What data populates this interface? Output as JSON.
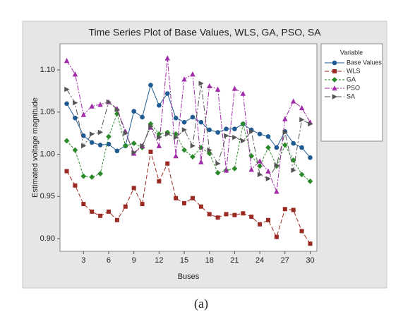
{
  "chart_data": {
    "type": "line",
    "title": "Time Series Plot of Base Values, WLS, GA, PSO, SA",
    "x_label": "Buses",
    "y_label": "Estimated voltage magnitude",
    "legend_title": "Variable",
    "legend": "right",
    "caption": "(a)",
    "x": [
      1,
      2,
      3,
      4,
      5,
      6,
      7,
      8,
      9,
      10,
      11,
      12,
      13,
      14,
      15,
      16,
      17,
      18,
      19,
      20,
      21,
      22,
      23,
      24,
      25,
      26,
      27,
      28,
      29,
      30
    ],
    "xlim": [
      0.2,
      30.8
    ],
    "xticks": [
      3,
      6,
      9,
      12,
      15,
      18,
      21,
      24,
      27,
      30
    ],
    "ylim": [
      0.885,
      1.131
    ],
    "yticks": [
      {
        "value": 0.9,
        "label": "0.90"
      },
      {
        "value": 0.95,
        "label": "0.95"
      },
      {
        "value": 1.0,
        "label": "1.00"
      },
      {
        "value": 1.05,
        "label": "1.05"
      },
      {
        "value": 1.1,
        "label": "1.10"
      }
    ],
    "series": [
      {
        "name": "Base Values",
        "color": "#1f5b92",
        "marker": "circle",
        "dash": "solid",
        "values": [
          1.06,
          1.043,
          1.022,
          1.014,
          1.011,
          1.012,
          1.004,
          1.01,
          1.051,
          1.044,
          1.082,
          1.058,
          1.072,
          1.043,
          1.038,
          1.044,
          1.038,
          1.029,
          1.026,
          1.03,
          1.03,
          1.036,
          1.029,
          1.024,
          1.021,
          1.008,
          1.027,
          1.013,
          1.008,
          0.996
        ]
      },
      {
        "name": "WLS",
        "color": "#9b2a22",
        "marker": "square",
        "dash": "long",
        "values": [
          0.98,
          0.963,
          0.941,
          0.932,
          0.927,
          0.932,
          0.922,
          0.938,
          0.96,
          0.941,
          1.003,
          0.968,
          0.989,
          0.948,
          0.942,
          0.948,
          0.938,
          0.929,
          0.925,
          0.929,
          0.928,
          0.93,
          0.926,
          0.917,
          0.922,
          0.902,
          0.935,
          0.934,
          0.909,
          0.894
        ]
      },
      {
        "name": "GA",
        "color": "#2a8a2a",
        "marker": "diamond",
        "dash": "short",
        "values": [
          1.016,
          1.005,
          0.974,
          0.973,
          0.977,
          1.021,
          1.048,
          1.01,
          1.013,
          1.008,
          1.036,
          1.024,
          1.026,
          1.024,
          1.005,
          0.997,
          1.008,
          1.001,
          0.978,
          0.981,
          0.983,
          1.036,
          0.998,
          0.986,
          1.008,
          0.986,
          1.011,
          0.993,
          0.976,
          0.968
        ]
      },
      {
        "name": "PSO",
        "color": "#a12ca8",
        "marker": "triangle",
        "dash": "dashdot",
        "values": [
          1.111,
          1.095,
          1.047,
          1.057,
          1.059,
          1.062,
          1.054,
          1.027,
          1.001,
          1.01,
          1.032,
          1.01,
          1.114,
          0.998,
          1.089,
          1.095,
          0.991,
          1.081,
          1.077,
          0.981,
          1.078,
          1.072,
          0.982,
          0.992,
          0.98,
          0.956,
          1.042,
          1.063,
          1.055,
          1.038
        ]
      },
      {
        "name": "SA",
        "color": "#555555",
        "marker": "triangle-right",
        "dash": "longdot",
        "values": [
          1.077,
          1.061,
          1.01,
          1.024,
          1.026,
          1.062,
          1.053,
          1.025,
          1.002,
          1.01,
          1.033,
          1.02,
          1.024,
          1.02,
          1.029,
          1.01,
          1.084,
          1.005,
          0.989,
          1.022,
          1.02,
          1.016,
          1.027,
          0.976,
          0.971,
          0.987,
          1.026,
          0.981,
          1.041,
          1.036
        ]
      }
    ]
  }
}
